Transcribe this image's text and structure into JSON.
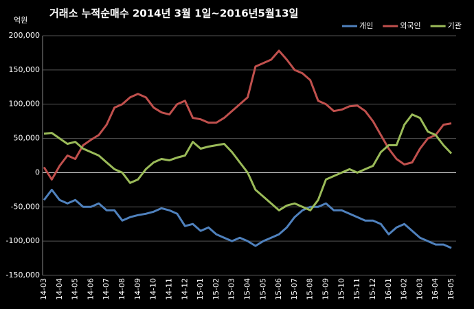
{
  "chart_data": {
    "type": "line",
    "title": "거래소  누적순매수 2014년 3월 1일~2016년5월13일",
    "y_label": "억원",
    "categories": [
      "14-03",
      null,
      "14-04",
      null,
      "14-05",
      null,
      "14-06",
      null,
      "14-07",
      null,
      "14-08",
      null,
      "14-09",
      null,
      "14-10",
      null,
      "14-11",
      null,
      "14-12",
      null,
      "15-01",
      null,
      "15-02",
      null,
      "15-03",
      null,
      "15-04",
      null,
      "15-05",
      null,
      "15-06",
      null,
      "15-07",
      null,
      "15-08",
      null,
      "15-09",
      null,
      "15-10",
      null,
      "15-11",
      null,
      "15-12",
      null,
      "16-01",
      null,
      "16-02",
      null,
      "16-03",
      null,
      "16-04",
      null,
      "16-05"
    ],
    "series": [
      {
        "name": "개인",
        "color": "#4f81bd",
        "values": [
          -40000,
          -25000,
          -40000,
          -45000,
          -40000,
          -50000,
          -50000,
          -45000,
          -55000,
          -55000,
          -70000,
          -65000,
          -62000,
          -60000,
          -57000,
          -52000,
          -55000,
          -60000,
          -78000,
          -75000,
          -85000,
          -80000,
          -90000,
          -95000,
          -100000,
          -95000,
          -100000,
          -107000,
          -100000,
          -95000,
          -90000,
          -80000,
          -65000,
          -55000,
          -50000,
          -50000,
          -45000,
          -55000,
          -55000,
          -60000,
          -65000,
          -70000,
          -70000,
          -75000,
          -90000,
          -80000,
          -75000,
          -85000,
          -95000,
          -100000,
          -105000,
          -105000,
          -110000
        ]
      },
      {
        "name": "외국인",
        "color": "#c0504d",
        "values": [
          8000,
          -10000,
          10000,
          25000,
          20000,
          40000,
          48000,
          55000,
          70000,
          95000,
          100000,
          110000,
          115000,
          110000,
          95000,
          88000,
          85000,
          100000,
          105000,
          80000,
          78000,
          73000,
          73000,
          80000,
          90000,
          100000,
          110000,
          155000,
          160000,
          165000,
          178000,
          165000,
          150000,
          145000,
          135000,
          105000,
          100000,
          90000,
          92000,
          97000,
          98000,
          90000,
          75000,
          55000,
          35000,
          20000,
          12000,
          15000,
          35000,
          50000,
          55000,
          70000,
          72000
        ]
      },
      {
        "name": "기관",
        "color": "#9bbb59",
        "values": [
          57000,
          58000,
          50000,
          42000,
          45000,
          35000,
          30000,
          25000,
          15000,
          5000,
          0,
          -15000,
          -10000,
          5000,
          15000,
          20000,
          18000,
          22000,
          25000,
          45000,
          35000,
          38000,
          40000,
          42000,
          30000,
          15000,
          0,
          -25000,
          -35000,
          -45000,
          -55000,
          -48000,
          -45000,
          -50000,
          -55000,
          -40000,
          -10000,
          -5000,
          0,
          5000,
          0,
          5000,
          10000,
          30000,
          40000,
          40000,
          70000,
          85000,
          80000,
          60000,
          55000,
          40000,
          28000
        ]
      }
    ],
    "ylim": [
      -150000,
      200000
    ],
    "yticks": [
      {
        "value": -150000,
        "label": "-150,000"
      },
      {
        "value": -100000,
        "label": "-100,000"
      },
      {
        "value": -50000,
        "label": "-50,000"
      },
      0,
      {
        "value": 50000,
        "label": "50,000"
      },
      {
        "value": 100000,
        "label": "100,000"
      },
      {
        "value": 150000,
        "label": "150,000"
      },
      {
        "value": 200000,
        "label": "200,000"
      }
    ],
    "grid": true,
    "legend": "top-right",
    "background": "#000000"
  }
}
